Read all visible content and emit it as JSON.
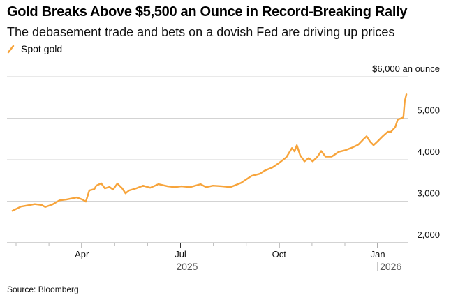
{
  "header": {
    "title": "Gold Breaks Above $5,500 an Ounce in Record-Breaking Rally",
    "subtitle": "The debasement trade and bets on a dovish Fed are driving up prices"
  },
  "legend": {
    "items": [
      {
        "label": "Spot gold",
        "color": "#f7a43b",
        "icon": "line-swatch-icon"
      }
    ]
  },
  "footer": {
    "source": "Source: Bloomberg"
  },
  "colors": {
    "series": "#f7a43b",
    "grid": "#d3d3d3",
    "axis": "#d3d3d3",
    "text": "#111111",
    "year_text": "#555555"
  },
  "chart_data": {
    "type": "line",
    "title": "Gold Breaks Above $5,500 an Ounce in Record-Breaking Rally",
    "subtitle": "The debasement trade and bets on a dovish Fed are driving up prices",
    "xlabel": "",
    "ylabel": "$ an ounce",
    "x_unit": "months since 2025-01-01",
    "xlim": [
      0.0,
      13.3
    ],
    "ylim": [
      2000,
      6000
    ],
    "y_ticks": [
      {
        "value": 6000,
        "label": "$6,000 an ounce"
      },
      {
        "value": 5000,
        "label": "5,000"
      },
      {
        "value": 4000,
        "label": "4,000"
      },
      {
        "value": 3000,
        "label": "3,000"
      },
      {
        "value": 2000,
        "label": "2,000"
      }
    ],
    "x_ticks": [
      {
        "value": 1,
        "label": ""
      },
      {
        "value": 2,
        "label": ""
      },
      {
        "value": 3,
        "label": "Apr",
        "major": true
      },
      {
        "value": 4,
        "label": ""
      },
      {
        "value": 5,
        "label": ""
      },
      {
        "value": 6,
        "label": "Jul",
        "major": true
      },
      {
        "value": 7,
        "label": ""
      },
      {
        "value": 8,
        "label": ""
      },
      {
        "value": 9,
        "label": "Oct",
        "major": true
      },
      {
        "value": 10,
        "label": ""
      },
      {
        "value": 11,
        "label": ""
      },
      {
        "value": 12,
        "label": "Jan",
        "major": true
      }
    ],
    "year_labels": [
      {
        "value": 6.2,
        "label": "2025",
        "divider": false
      },
      {
        "value": 12.0,
        "label": "2026",
        "divider": true
      }
    ],
    "grid": true,
    "legend_position": "top-left",
    "series": [
      {
        "name": "Spot gold",
        "color": "#f7a43b",
        "points": [
          [
            0.89,
            2770
          ],
          [
            1.15,
            2870
          ],
          [
            1.36,
            2900
          ],
          [
            1.57,
            2930
          ],
          [
            1.78,
            2910
          ],
          [
            1.89,
            2860
          ],
          [
            2.1,
            2920
          ],
          [
            2.32,
            3020
          ],
          [
            2.53,
            3040
          ],
          [
            2.85,
            3090
          ],
          [
            3.02,
            3040
          ],
          [
            3.12,
            2990
          ],
          [
            3.23,
            3260
          ],
          [
            3.38,
            3290
          ],
          [
            3.44,
            3375
          ],
          [
            3.59,
            3430
          ],
          [
            3.7,
            3310
          ],
          [
            3.84,
            3345
          ],
          [
            3.95,
            3280
          ],
          [
            4.08,
            3425
          ],
          [
            4.23,
            3310
          ],
          [
            4.33,
            3190
          ],
          [
            4.44,
            3260
          ],
          [
            4.65,
            3310
          ],
          [
            4.86,
            3375
          ],
          [
            5.08,
            3325
          ],
          [
            5.33,
            3410
          ],
          [
            5.61,
            3360
          ],
          [
            5.82,
            3340
          ],
          [
            6.03,
            3360
          ],
          [
            6.29,
            3340
          ],
          [
            6.61,
            3410
          ],
          [
            6.78,
            3340
          ],
          [
            6.99,
            3375
          ],
          [
            7.27,
            3360
          ],
          [
            7.52,
            3340
          ],
          [
            7.84,
            3440
          ],
          [
            8.16,
            3610
          ],
          [
            8.41,
            3660
          ],
          [
            8.58,
            3745
          ],
          [
            8.79,
            3810
          ],
          [
            9.01,
            3930
          ],
          [
            9.22,
            4060
          ],
          [
            9.39,
            4280
          ],
          [
            9.47,
            4200
          ],
          [
            9.54,
            4350
          ],
          [
            9.64,
            4110
          ],
          [
            9.77,
            3960
          ],
          [
            9.9,
            4040
          ],
          [
            10.02,
            3960
          ],
          [
            10.17,
            4075
          ],
          [
            10.28,
            4210
          ],
          [
            10.41,
            4075
          ],
          [
            10.6,
            4075
          ],
          [
            10.81,
            4190
          ],
          [
            11.02,
            4230
          ],
          [
            11.24,
            4300
          ],
          [
            11.41,
            4365
          ],
          [
            11.55,
            4480
          ],
          [
            11.66,
            4565
          ],
          [
            11.77,
            4430
          ],
          [
            11.87,
            4350
          ],
          [
            11.98,
            4430
          ],
          [
            12.15,
            4565
          ],
          [
            12.3,
            4670
          ],
          [
            12.4,
            4670
          ],
          [
            12.53,
            4785
          ],
          [
            12.61,
            4970
          ],
          [
            12.72,
            5000
          ],
          [
            12.78,
            5020
          ],
          [
            12.82,
            5405
          ],
          [
            12.87,
            5575
          ]
        ]
      }
    ]
  }
}
